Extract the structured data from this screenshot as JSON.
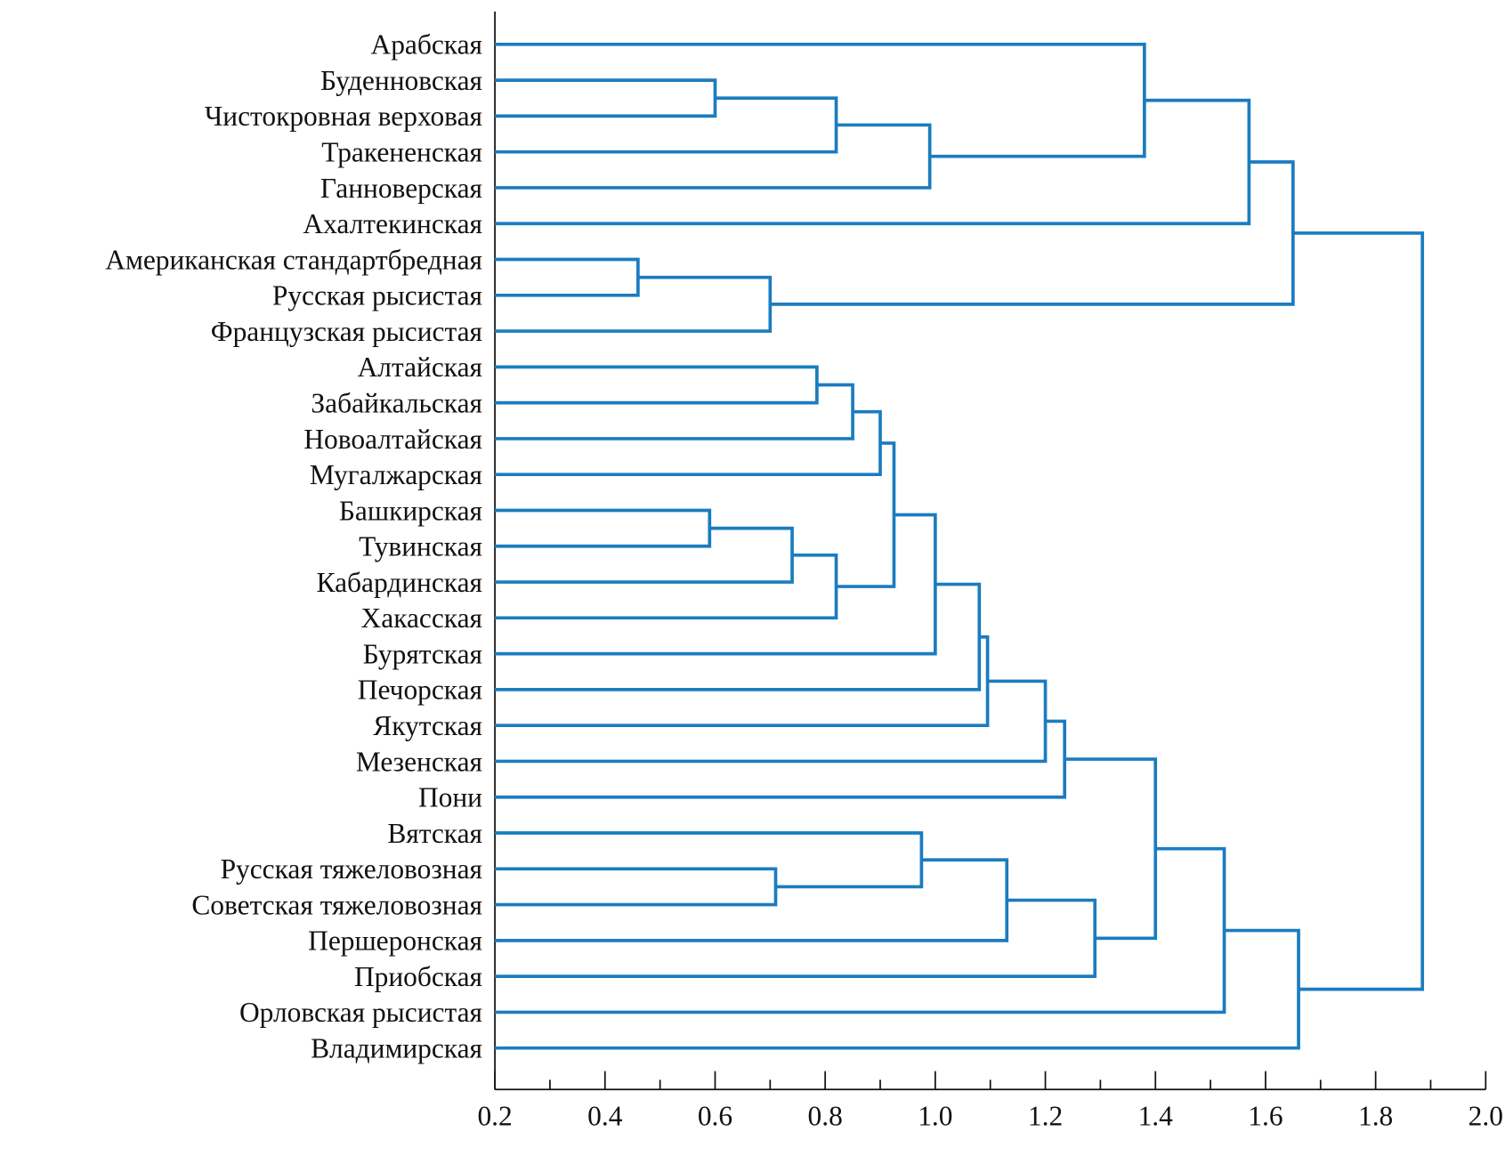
{
  "chart_data": {
    "type": "dendrogram",
    "orientation": "horizontal",
    "color": "#1b7cc0",
    "xlim": [
      0.2,
      2.0
    ],
    "x_ticks": [
      "0.2",
      "0.4",
      "0.6",
      "0.8",
      "1.0",
      "1.2",
      "1.4",
      "1.6",
      "1.8",
      "2.0"
    ],
    "x_minor_step": 0.1,
    "grid": false,
    "leaves": [
      "Арабская",
      "Буденновская",
      "Чистокровная верховая",
      "Тракененская",
      "Ганноверская",
      "Ахалтекинская",
      "Американская стандартбредная",
      "Русская рысистая",
      "Французская рысистая",
      "Алтайская",
      "Забайкальская",
      "Новоалтайская",
      "Мугалжарская",
      "Башкирская",
      "Тувинская",
      "Кабардинская",
      "Хакасская",
      "Бурятская",
      "Печорская",
      "Якутская",
      "Мезенская",
      "Пони",
      "Вятская",
      "Русская тяжеловозная",
      "Советская тяжеловозная",
      "Першеронская",
      "Приобская",
      "Орловская рысистая",
      "Владимирская"
    ],
    "merges": [
      [
        1,
        2,
        0.6
      ],
      [
        29,
        3,
        0.82
      ],
      [
        30,
        4,
        0.99
      ],
      [
        0,
        31,
        1.38
      ],
      [
        32,
        5,
        1.57
      ],
      [
        6,
        7,
        0.46
      ],
      [
        34,
        8,
        0.7
      ],
      [
        33,
        35,
        1.65
      ],
      [
        9,
        10,
        0.785
      ],
      [
        37,
        11,
        0.85
      ],
      [
        38,
        12,
        0.9
      ],
      [
        13,
        14,
        0.59
      ],
      [
        40,
        15,
        0.74
      ],
      [
        41,
        16,
        0.82
      ],
      [
        39,
        42,
        0.925
      ],
      [
        43,
        17,
        1.0
      ],
      [
        44,
        18,
        1.08
      ],
      [
        45,
        19,
        1.095
      ],
      [
        46,
        20,
        1.2
      ],
      [
        47,
        21,
        1.235
      ],
      [
        23,
        24,
        0.71
      ],
      [
        22,
        49,
        0.975
      ],
      [
        50,
        25,
        1.13
      ],
      [
        51,
        26,
        1.29
      ],
      [
        48,
        52,
        1.4
      ],
      [
        53,
        27,
        1.525
      ],
      [
        54,
        28,
        1.66
      ],
      [
        36,
        55,
        1.885
      ]
    ]
  }
}
